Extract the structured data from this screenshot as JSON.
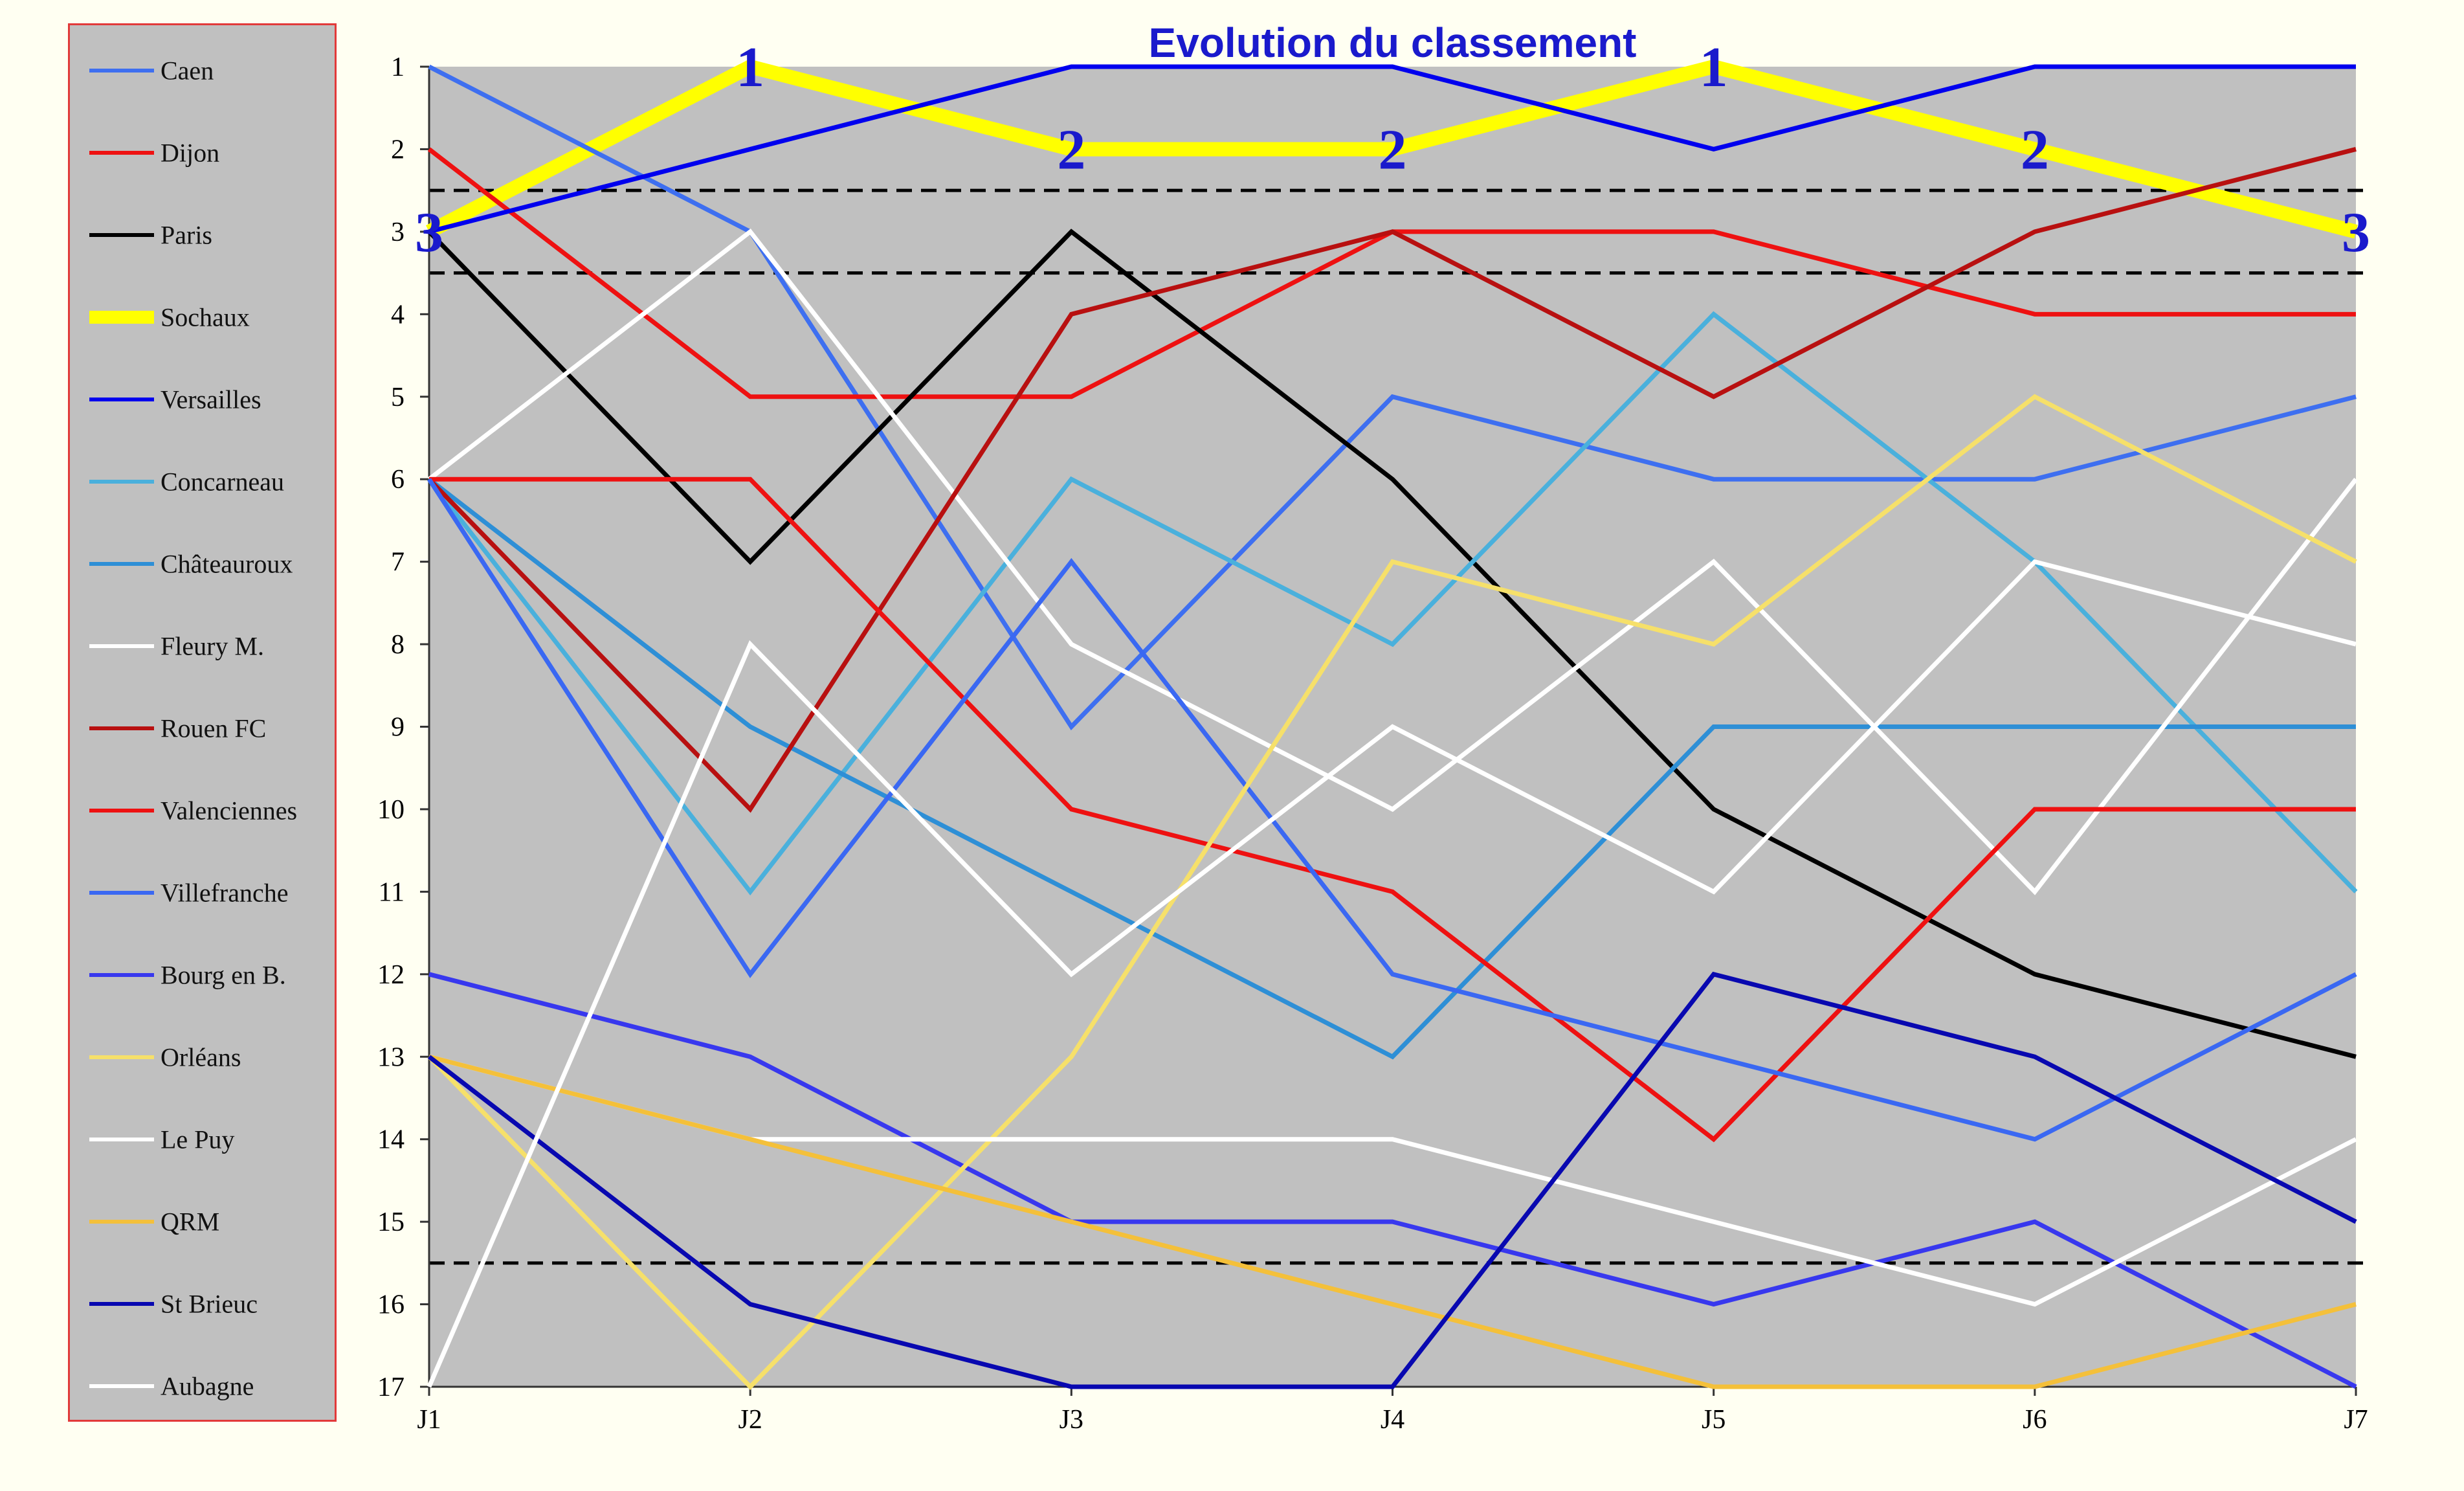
{
  "chart_data": {
    "type": "line",
    "title": "Evolution du classement",
    "categories": [
      "J1",
      "J2",
      "J3",
      "J4",
      "J5",
      "J6",
      "J7"
    ],
    "y_ticks": [
      "1",
      "2",
      "3",
      "4",
      "5",
      "6",
      "7",
      "8",
      "9",
      "10",
      "11",
      "12",
      "13",
      "14",
      "15",
      "16",
      "17"
    ],
    "ylim": [
      1,
      17
    ],
    "y_inverted": true,
    "grid": false,
    "legend_position": "left",
    "plot_background": "#c0c0c0",
    "reference_lines": [
      2.5,
      3.5,
      15.5
    ],
    "series": [
      {
        "name": "Caen",
        "color": "#3e6ff0",
        "width": 7,
        "values": [
          1,
          3,
          9,
          5,
          6,
          6,
          5
        ]
      },
      {
        "name": "Dijon",
        "color": "#ee1111",
        "width": 7,
        "values": [
          2,
          5,
          5,
          3,
          3,
          4,
          4
        ]
      },
      {
        "name": "Paris",
        "color": "#000000",
        "width": 7,
        "values": [
          3,
          7,
          3,
          6,
          10,
          12,
          13
        ]
      },
      {
        "name": "Sochaux",
        "color": "#ffff00",
        "width": 22,
        "values": [
          3,
          1,
          2,
          2,
          1,
          2,
          3
        ]
      },
      {
        "name": "Versailles",
        "color": "#0000ee",
        "width": 7,
        "values": [
          3,
          2,
          1,
          1,
          2,
          1,
          1
        ]
      },
      {
        "name": "Concarneau",
        "color": "#4ab0dc",
        "width": 7,
        "values": [
          6,
          11,
          6,
          8,
          4,
          7,
          11
        ]
      },
      {
        "name": "Châteauroux",
        "color": "#2e8fd6",
        "width": 7,
        "values": [
          6,
          9,
          11,
          13,
          9,
          9,
          9
        ]
      },
      {
        "name": "Fleury M.",
        "color": "#ffffff",
        "width": 7,
        "values": [
          6,
          3,
          8,
          10,
          7,
          11,
          6
        ]
      },
      {
        "name": "Rouen FC",
        "color": "#b81010",
        "width": 7,
        "values": [
          6,
          10,
          4,
          3,
          5,
          3,
          2
        ]
      },
      {
        "name": "Valenciennes",
        "color": "#ee1111",
        "width": 7,
        "values": [
          6,
          6,
          10,
          11,
          14,
          10,
          10
        ]
      },
      {
        "name": "Villefranche",
        "color": "#3a68f2",
        "width": 7,
        "values": [
          6,
          12,
          7,
          12,
          13,
          14,
          12
        ]
      },
      {
        "name": "Bourg en B.",
        "color": "#3838ee",
        "width": 7,
        "values": [
          12,
          13,
          15,
          15,
          16,
          15,
          17
        ]
      },
      {
        "name": "Orléans",
        "color": "#f6e06a",
        "width": 7,
        "values": [
          13,
          17,
          13,
          7,
          8,
          5,
          7
        ]
      },
      {
        "name": "Le Puy",
        "color": "#ffffff",
        "width": 7,
        "values": [
          13,
          14,
          14,
          14,
          15,
          16,
          14
        ]
      },
      {
        "name": "QRM",
        "color": "#f4c03a",
        "width": 7,
        "values": [
          13,
          14,
          15,
          16,
          17,
          17,
          16
        ]
      },
      {
        "name": "St Brieuc",
        "color": "#0808b0",
        "width": 7,
        "values": [
          13,
          16,
          17,
          17,
          12,
          13,
          15
        ]
      },
      {
        "name": "Aubagne",
        "color": "#ffffff",
        "width": 7,
        "values": [
          17,
          8,
          12,
          9,
          11,
          7,
          8
        ]
      }
    ],
    "annotations": [
      {
        "series": "Sochaux",
        "index": 0,
        "text": "3"
      },
      {
        "series": "Sochaux",
        "index": 1,
        "text": "1"
      },
      {
        "series": "Sochaux",
        "index": 2,
        "text": "2"
      },
      {
        "series": "Sochaux",
        "index": 3,
        "text": "2"
      },
      {
        "series": "Sochaux",
        "index": 4,
        "text": "1"
      },
      {
        "series": "Sochaux",
        "index": 5,
        "text": "2"
      },
      {
        "series": "Sochaux",
        "index": 6,
        "text": "3"
      }
    ]
  }
}
